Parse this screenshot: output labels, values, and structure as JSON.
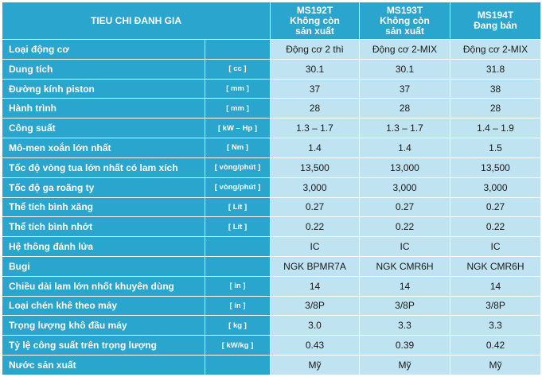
{
  "header": {
    "criteria": "TIEU CHI ĐANH GIA",
    "models": [
      {
        "name": "MS192T",
        "status_lines": [
          "Không còn",
          "sản xuất"
        ]
      },
      {
        "name": "MS193T",
        "status_lines": [
          "Không còn",
          "sản xuất"
        ]
      },
      {
        "name": "MS194T",
        "status_lines": [
          "Đang bán"
        ]
      }
    ]
  },
  "rows": [
    {
      "label": "Loại động cơ",
      "unit": "",
      "values": [
        "Động cơ 2 thì",
        "Động cơ 2-MIX",
        "Động cơ 2-MIX"
      ]
    },
    {
      "label": "Dung tích",
      "unit": "[ cc ]",
      "values": [
        "30.1",
        "30.1",
        "31.8"
      ]
    },
    {
      "label": "Đường kính piston",
      "unit": "[ mm ]",
      "values": [
        "37",
        "37",
        "38"
      ]
    },
    {
      "label": "Hành trình",
      "unit": "[ mm ]",
      "values": [
        "28",
        "28",
        "28"
      ]
    },
    {
      "label": "Công suất",
      "unit": "[ kW – Hp ]",
      "values": [
        "1.3 – 1.7",
        "1.3 – 1.7",
        "1.4 – 1.9"
      ]
    },
    {
      "label": "Mô-men xoắn lớn nhất",
      "unit": "[ Nm ]",
      "values": [
        "1.4",
        "1.4",
        "1.5"
      ]
    },
    {
      "label": "Tốc độ vòng tua lớn nhất có lam xích",
      "unit": "[ vòng/phút ]",
      "values": [
        "13,500",
        "13,000",
        "13,500"
      ]
    },
    {
      "label": "Tốc độ ga roãng ty",
      "unit": "[ vòng/phút ]",
      "values": [
        "3,000",
        "3,000",
        "3,000"
      ]
    },
    {
      "label": "Thể tích bình xăng",
      "unit": "[ Lít ]",
      "values": [
        "0.27",
        "0.27",
        "0.27"
      ]
    },
    {
      "label": "Thể tích bình nhớt",
      "unit": "[ Lít ]",
      "values": [
        "0.22",
        "0.22",
        "0.22"
      ]
    },
    {
      "label": "Hệ thông đánh lửa",
      "unit": "",
      "values": [
        "IC",
        "IC",
        "IC"
      ]
    },
    {
      "label": "Bugi",
      "unit": "",
      "values": [
        "NGK BPMR7A",
        "NGK CMR6H",
        "NGK CMR6H"
      ]
    },
    {
      "label": "Chiều dài lam lớn nhốt khuyên dùng",
      "unit": "[ in ]",
      "values": [
        "14",
        "14",
        "14"
      ]
    },
    {
      "label": "Loại chén khê theo máy",
      "unit": "[ in ]",
      "values": [
        "3/8P",
        "3/8P",
        "3/8P"
      ]
    },
    {
      "label": "Trọng lượng khô đầu máy",
      "unit": "[ kg ]",
      "values": [
        "3.0",
        "3.3",
        "3.3"
      ]
    },
    {
      "label": "Tỷ lệ công suất trên trọng lượng",
      "unit": "[ kW/kg ]",
      "values": [
        "0.43",
        "0.39",
        "0.42"
      ]
    },
    {
      "label": "Nước sản xuất",
      "unit": "",
      "values": [
        "Mỹ",
        "Mỹ",
        "Mỹ"
      ]
    }
  ],
  "colors": {
    "header_bg": "#2aa6ce",
    "label_bg": "#2aa6ce",
    "value_bg": "#bfe3f0",
    "grid": "#ffffff"
  }
}
